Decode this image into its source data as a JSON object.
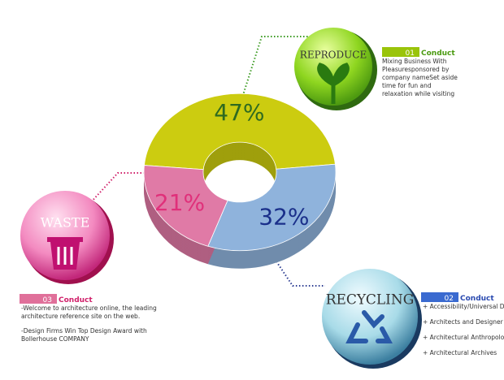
{
  "chart_data": {
    "type": "donut",
    "categories": [
      "REPRODUCE",
      "RECYCLING",
      "WASTE"
    ],
    "values": [
      47,
      32,
      21
    ],
    "value_labels": [
      "47%",
      "32%",
      "21%"
    ],
    "colors": [
      "#cccc10",
      "#8fb3dc",
      "#e07aa6"
    ]
  },
  "callouts": [
    {
      "number": "01",
      "heading": "Conduct",
      "lines": [
        "Mixing Business With",
        "Pleasuresponsored by",
        "company nameSet aside",
        "time for fun and",
        "relaxation while visiting"
      ]
    },
    {
      "number": "02",
      "heading": "Conduct",
      "lines": [
        "+ Accessibility/Universal D",
        "+ Architects and Designer",
        "+ Architectural Anthropolo",
        "+ Architectural Archives"
      ]
    },
    {
      "number": "03",
      "heading": "Conduct",
      "lines": [
        "-Welcome to architecture online, the leading",
        "architecture reference site on the web.",
        "-Design Firms Win Top Design Award with",
        "Bollerhouse COMPANY"
      ]
    }
  ]
}
